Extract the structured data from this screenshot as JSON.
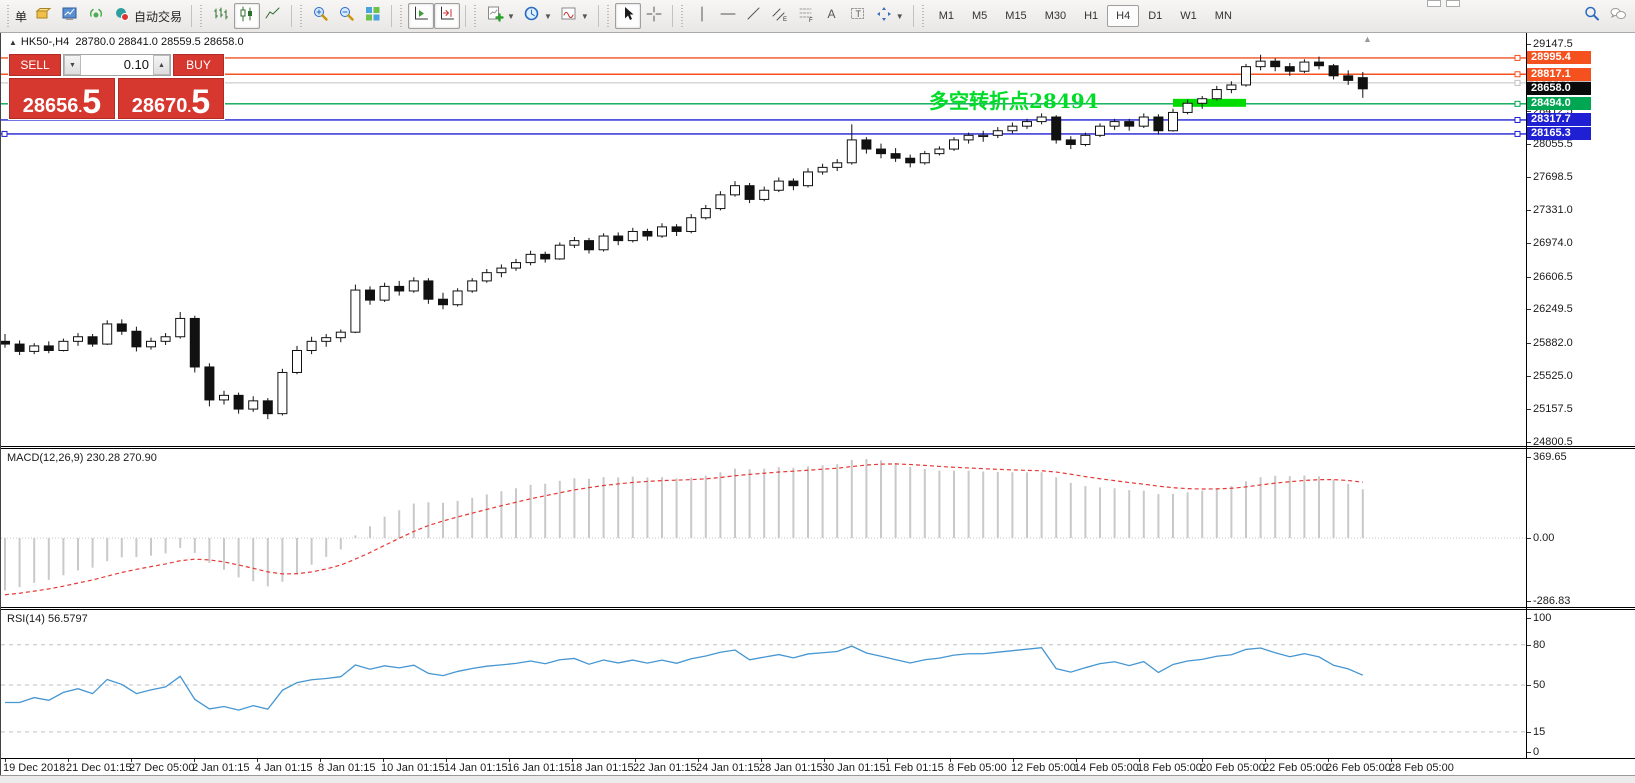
{
  "title": {
    "symbol": "HK50-,H4",
    "ohlc": "28780.0 28841.0 28559.5 28658.0"
  },
  "annotation": {
    "text": "多空转折点28494",
    "color": "#00dc28"
  },
  "trade_panel": {
    "sell_label": "SELL",
    "buy_label": "BUY",
    "volume": "0.10",
    "sell_int": "28656",
    "sell_dec": "5",
    "buy_int": "28670",
    "buy_dec": "5"
  },
  "toolbar": {
    "items": [
      {
        "type": "label",
        "name": "partial-new-order",
        "label": "单"
      },
      {
        "type": "button",
        "name": "new-order"
      },
      {
        "type": "button",
        "name": "market-watch"
      },
      {
        "type": "button",
        "name": "signals"
      },
      {
        "type": "button",
        "name": "auto-trading",
        "label": "自动交易"
      },
      {
        "type": "sep"
      },
      {
        "type": "button",
        "name": "chart-bars"
      },
      {
        "type": "button",
        "name": "chart-candles",
        "active": true
      },
      {
        "type": "button",
        "name": "chart-line"
      },
      {
        "type": "sep"
      },
      {
        "type": "button",
        "name": "zoom-in"
      },
      {
        "type": "button",
        "name": "zoom-out"
      },
      {
        "type": "button",
        "name": "tile-windows"
      },
      {
        "type": "sep"
      },
      {
        "type": "button",
        "name": "auto-scroll",
        "active": true
      },
      {
        "type": "button",
        "name": "chart-shift",
        "active": true
      },
      {
        "type": "sep"
      },
      {
        "type": "button",
        "name": "new-chart",
        "dropdown": true
      },
      {
        "type": "button",
        "name": "profiles",
        "dropdown": true
      },
      {
        "type": "button",
        "name": "templates",
        "dropdown": true
      },
      {
        "type": "sep"
      },
      {
        "type": "button",
        "name": "cursor",
        "active": true
      },
      {
        "type": "button",
        "name": "crosshair"
      },
      {
        "type": "sep"
      },
      {
        "type": "button",
        "name": "vertical-line"
      },
      {
        "type": "button",
        "name": "horizontal-line"
      },
      {
        "type": "button",
        "name": "trendline"
      },
      {
        "type": "button",
        "name": "equidistant-channel"
      },
      {
        "type": "button",
        "name": "fibonacci-retracement"
      },
      {
        "type": "button",
        "name": "text"
      },
      {
        "type": "button",
        "name": "text-label"
      },
      {
        "type": "button",
        "name": "arrows",
        "dropdown": true
      },
      {
        "type": "sep"
      }
    ],
    "timeframes": [
      "M1",
      "M5",
      "M15",
      "M30",
      "H1",
      "H4",
      "D1",
      "W1",
      "MN"
    ],
    "active_timeframe": "H4",
    "right_items": [
      {
        "name": "search"
      },
      {
        "name": "chat"
      }
    ]
  },
  "main_chart": {
    "y_ticks": [
      29147.5,
      28769.5,
      28412.5,
      28055.5,
      27698.5,
      27331.0,
      26974.0,
      26606.5,
      26249.5,
      25882.0,
      25525.0,
      25157.5,
      24800.5
    ],
    "levels": [
      {
        "price": 28723.0,
        "color": "#c0c0c0",
        "line_width": 1
      },
      {
        "price": 28995.4,
        "color": "#f4511e",
        "line_width": 1.4
      },
      {
        "price": 28817.1,
        "color": "#f4511e",
        "line_width": 1.4
      },
      {
        "price": 28494.0,
        "color": "#00a651",
        "line_width": 1.4
      },
      {
        "price": 28317.7,
        "color": "#1f1fd4",
        "line_width": 1.4
      },
      {
        "price": 28165.3,
        "color": "#1f1fd4",
        "line_width": 1.4
      }
    ],
    "current_price": 28658.0,
    "current_price_color": "#0a0a0a",
    "thick_segment": {
      "from_bar": 80,
      "to_bar": 85,
      "price": 28505,
      "color": "#00dc00"
    }
  },
  "macd": {
    "title": "MACD(12,26,9)",
    "values": "230.28 270.90",
    "axis_ticks": [
      369.65,
      0.0,
      -286.83
    ],
    "bar_color": "#c9c9c9",
    "signal_color": "#e53935"
  },
  "rsi": {
    "title": "RSI(14)",
    "value": "56.5797",
    "axis_ticks": [
      100,
      80,
      50,
      15,
      0
    ],
    "levels": [
      80,
      50,
      15
    ],
    "line_color": "#4696d2"
  },
  "time_axis": {
    "labels": [
      "19 Dec 2018",
      "21 Dec 01:15",
      "27 Dec 05:00",
      "2 Jan 01:15",
      "4 Jan 01:15",
      "8 Jan 01:15",
      "10 Jan 01:15",
      "14 Jan 01:15",
      "16 Jan 01:15",
      "18 Jan 01:15",
      "22 Jan 01:15",
      "24 Jan 01:15",
      "28 Jan 01:15",
      "30 Jan 01:15",
      "1 Feb 01:15",
      "8 Feb 05:00",
      "12 Feb 05:00",
      "14 Feb 05:00",
      "18 Feb 05:00",
      "20 Feb 05:00",
      "22 Feb 05:00",
      "26 Feb 05:00",
      "28 Feb 05:00"
    ]
  },
  "chart_data": [
    {
      "type": "candlestick",
      "title": "HK50-,H4",
      "ylim": [
        24800.5,
        29147.5
      ],
      "ohlc": [
        [
          25900,
          25980,
          25830,
          25870
        ],
        [
          25870,
          25910,
          25750,
          25790
        ],
        [
          25790,
          25880,
          25760,
          25850
        ],
        [
          25850,
          25900,
          25770,
          25800
        ],
        [
          25800,
          25930,
          25790,
          25900
        ],
        [
          25900,
          25990,
          25850,
          25950
        ],
        [
          25950,
          25980,
          25840,
          25870
        ],
        [
          25870,
          26130,
          25860,
          26090
        ],
        [
          26090,
          26140,
          25970,
          26010
        ],
        [
          26010,
          26060,
          25790,
          25840
        ],
        [
          25840,
          25940,
          25810,
          25900
        ],
        [
          25900,
          25990,
          25860,
          25950
        ],
        [
          25950,
          26220,
          25930,
          26150
        ],
        [
          26150,
          26180,
          25560,
          25620
        ],
        [
          25620,
          25660,
          25190,
          25260
        ],
        [
          25260,
          25360,
          25210,
          25310
        ],
        [
          25310,
          25340,
          25110,
          25160
        ],
        [
          25160,
          25300,
          25130,
          25250
        ],
        [
          25250,
          25280,
          25050,
          25110
        ],
        [
          25110,
          25600,
          25090,
          25560
        ],
        [
          25560,
          25850,
          25540,
          25800
        ],
        [
          25800,
          25950,
          25760,
          25900
        ],
        [
          25900,
          25980,
          25840,
          25940
        ],
        [
          25940,
          26030,
          25890,
          26000
        ],
        [
          26000,
          26520,
          25990,
          26460
        ],
        [
          26460,
          26500,
          26300,
          26350
        ],
        [
          26350,
          26540,
          26330,
          26500
        ],
        [
          26500,
          26560,
          26400,
          26450
        ],
        [
          26450,
          26600,
          26430,
          26560
        ],
        [
          26560,
          26590,
          26310,
          26360
        ],
        [
          26360,
          26430,
          26250,
          26300
        ],
        [
          26300,
          26480,
          26280,
          26450
        ],
        [
          26450,
          26590,
          26430,
          26560
        ],
        [
          26560,
          26690,
          26540,
          26650
        ],
        [
          26650,
          26740,
          26600,
          26700
        ],
        [
          26700,
          26800,
          26670,
          26760
        ],
        [
          26760,
          26890,
          26730,
          26850
        ],
        [
          26850,
          26880,
          26760,
          26800
        ],
        [
          26800,
          26980,
          26790,
          26950
        ],
        [
          26950,
          27040,
          26920,
          27000
        ],
        [
          27000,
          27030,
          26860,
          26900
        ],
        [
          26900,
          27080,
          26880,
          27050
        ],
        [
          27050,
          27090,
          26950,
          27000
        ],
        [
          27000,
          27140,
          26980,
          27100
        ],
        [
          27100,
          27130,
          27000,
          27050
        ],
        [
          27050,
          27190,
          27030,
          27150
        ],
        [
          27150,
          27180,
          27050,
          27100
        ],
        [
          27100,
          27290,
          27080,
          27250
        ],
        [
          27250,
          27390,
          27230,
          27350
        ],
        [
          27350,
          27540,
          27330,
          27500
        ],
        [
          27500,
          27650,
          27480,
          27600
        ],
        [
          27600,
          27630,
          27410,
          27450
        ],
        [
          27450,
          27590,
          27430,
          27550
        ],
        [
          27550,
          27690,
          27530,
          27650
        ],
        [
          27650,
          27680,
          27550,
          27600
        ],
        [
          27600,
          27790,
          27580,
          27750
        ],
        [
          27750,
          27840,
          27720,
          27800
        ],
        [
          27800,
          27890,
          27760,
          27850
        ],
        [
          27850,
          28270,
          27830,
          28100
        ],
        [
          28100,
          28130,
          27950,
          28000
        ],
        [
          28000,
          28060,
          27900,
          27950
        ],
        [
          27950,
          28010,
          27860,
          27900
        ],
        [
          27900,
          27940,
          27800,
          27850
        ],
        [
          27850,
          27980,
          27830,
          27950
        ],
        [
          27950,
          28030,
          27930,
          28000
        ],
        [
          28000,
          28130,
          27980,
          28100
        ],
        [
          28100,
          28180,
          28060,
          28150
        ],
        [
          28150,
          28200,
          28080,
          28150
        ],
        [
          28150,
          28240,
          28120,
          28200
        ],
        [
          28200,
          28290,
          28170,
          28250
        ],
        [
          28250,
          28330,
          28220,
          28300
        ],
        [
          28300,
          28390,
          28270,
          28350
        ],
        [
          28350,
          28370,
          28060,
          28100
        ],
        [
          28100,
          28140,
          28000,
          28050
        ],
        [
          28050,
          28180,
          28030,
          28150
        ],
        [
          28150,
          28280,
          28130,
          28250
        ],
        [
          28250,
          28330,
          28210,
          28300
        ],
        [
          28300,
          28330,
          28200,
          28250
        ],
        [
          28250,
          28390,
          28230,
          28350
        ],
        [
          28350,
          28380,
          28160,
          28200
        ],
        [
          28200,
          28440,
          28190,
          28400
        ],
        [
          28400,
          28540,
          28380,
          28500
        ],
        [
          28500,
          28580,
          28440,
          28550
        ],
        [
          28550,
          28690,
          28530,
          28650
        ],
        [
          28650,
          28740,
          28610,
          28700
        ],
        [
          28700,
          28930,
          28680,
          28900
        ],
        [
          28900,
          29030,
          28860,
          28960
        ],
        [
          28960,
          28990,
          28850,
          28900
        ],
        [
          28900,
          28940,
          28800,
          28850
        ],
        [
          28850,
          28980,
          28830,
          28950
        ],
        [
          28950,
          29010,
          28870,
          28910
        ],
        [
          28910,
          28930,
          28760,
          28800
        ],
        [
          28800,
          28860,
          28700,
          28750
        ],
        [
          28780,
          28841,
          28559.5,
          28658
        ]
      ]
    },
    {
      "type": "bar",
      "name": "MACD(12,26,9) histogram + signal",
      "current": "230.28 270.90",
      "ylim": [
        -286.83,
        369.65
      ]
    },
    {
      "type": "line",
      "name": "RSI(14)",
      "current": "56.5797",
      "ylim": [
        0,
        100
      ],
      "levels": [
        80,
        50,
        15
      ]
    }
  ]
}
